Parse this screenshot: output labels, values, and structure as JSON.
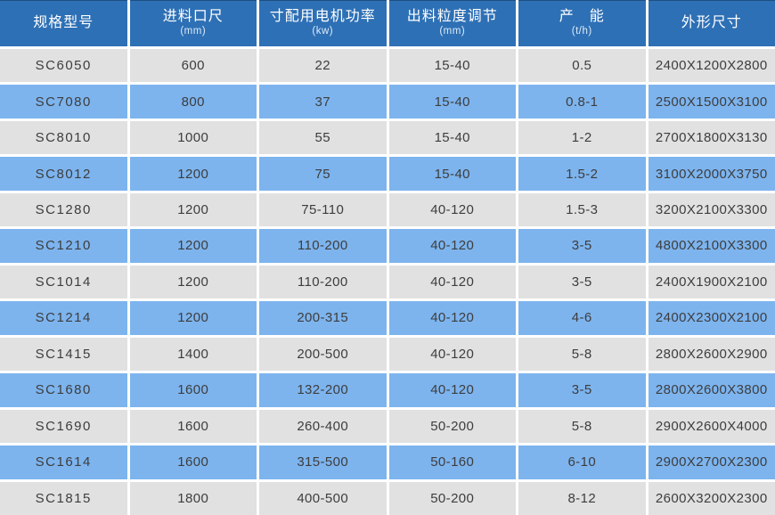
{
  "table": {
    "columns": [
      {
        "label": "规格型号",
        "unit": ""
      },
      {
        "label": "进料口尺",
        "unit": "(mm)"
      },
      {
        "label": "寸配用电机功率",
        "unit": "(kw)"
      },
      {
        "label": "出料粒度调节",
        "unit": "(mm)"
      },
      {
        "label": "产　能",
        "unit": "(t/h)"
      },
      {
        "label": "外形尺寸",
        "unit": ""
      }
    ],
    "rows": [
      [
        "SC6050",
        "600",
        "22",
        "15-40",
        "0.5",
        "2400X1200X2800"
      ],
      [
        "SC7080",
        "800",
        "37",
        "15-40",
        "0.8-1",
        "2500X1500X3100"
      ],
      [
        "SC8010",
        "1000",
        "55",
        "15-40",
        "1-2",
        "2700X1800X3130"
      ],
      [
        "SC8012",
        "1200",
        "75",
        "15-40",
        "1.5-2",
        "3100X2000X3750"
      ],
      [
        "SC1280",
        "1200",
        "75-110",
        "40-120",
        "1.5-3",
        "3200X2100X3300"
      ],
      [
        "SC1210",
        "1200",
        "110-200",
        "40-120",
        "3-5",
        "4800X2100X3300"
      ],
      [
        "SC1014",
        "1200",
        "110-200",
        "40-120",
        "3-5",
        "2400X1900X2100"
      ],
      [
        "SC1214",
        "1200",
        "200-315",
        "40-120",
        "4-6",
        "2400X2300X2100"
      ],
      [
        "SC1415",
        "1400",
        "200-500",
        "40-120",
        "5-8",
        "2800X2600X2900"
      ],
      [
        "SC1680",
        "1600",
        "132-200",
        "40-120",
        "3-5",
        "2800X2600X3800"
      ],
      [
        "SC1690",
        "1600",
        "260-400",
        "50-200",
        "5-8",
        "2900X2600X4000"
      ],
      [
        "SC1614",
        "1600",
        "315-500",
        "50-160",
        "6-10",
        "2900X2700X2300"
      ],
      [
        "SC1815",
        "1800",
        "400-500",
        "50-200",
        "8-12",
        "2600X3200X2300"
      ]
    ],
    "colors": {
      "header_bg": "#2e70b5",
      "header_text": "#ffffff",
      "row_gray": "#e1e1e1",
      "row_blue": "#7db4ee",
      "cell_text": "#3d3d3d",
      "gap": "#ffffff"
    }
  }
}
